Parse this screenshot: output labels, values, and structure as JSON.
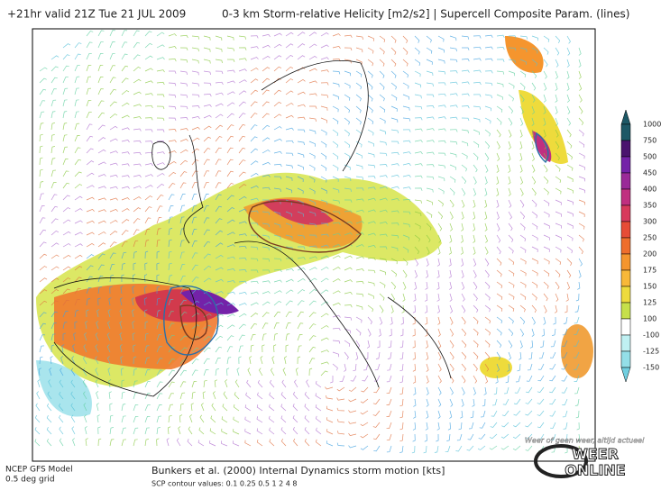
{
  "header": {
    "valid_time": "+21hr valid 21Z Tue 21 JUL 2009",
    "field": "0-3 km Storm-relative Helicity [m2/s2] | Supercell Composite Param. (lines)"
  },
  "footer": {
    "model": "NCEP GFS Model",
    "grid": "0.5 deg grid",
    "barbs": "Bunkers et al. (2000) Internal Dynamics storm motion [kts]",
    "contours": "SCP contour values: 0.1 0.25 0.5 1 2 4 8"
  },
  "legend": {
    "levels": [
      {
        "value": 1000,
        "color": "#1d5866"
      },
      {
        "value": 750,
        "color": "#4a136e"
      },
      {
        "value": 500,
        "color": "#7422a8"
      },
      {
        "value": 450,
        "color": "#9a2a98"
      },
      {
        "value": 400,
        "color": "#c02f80"
      },
      {
        "value": 350,
        "color": "#d83a5c"
      },
      {
        "value": 300,
        "color": "#e64c36"
      },
      {
        "value": 250,
        "color": "#ef6e2c"
      },
      {
        "value": 200,
        "color": "#f5952e"
      },
      {
        "value": 175,
        "color": "#f8b838"
      },
      {
        "value": 150,
        "color": "#eedb3c"
      },
      {
        "value": 125,
        "color": "#c6e04a"
      },
      {
        "value": 100,
        "color": "#ffffff"
      },
      {
        "value": -100,
        "color": "#bff0f2"
      },
      {
        "value": -125,
        "color": "#94dfe8"
      },
      {
        "value": -150,
        "color": "#70cfe0"
      }
    ]
  },
  "logo": {
    "slogan": "Weer of geen weer, altijd actueel",
    "brand_top": "WEER",
    "brand_bottom": "ONLINE"
  }
}
